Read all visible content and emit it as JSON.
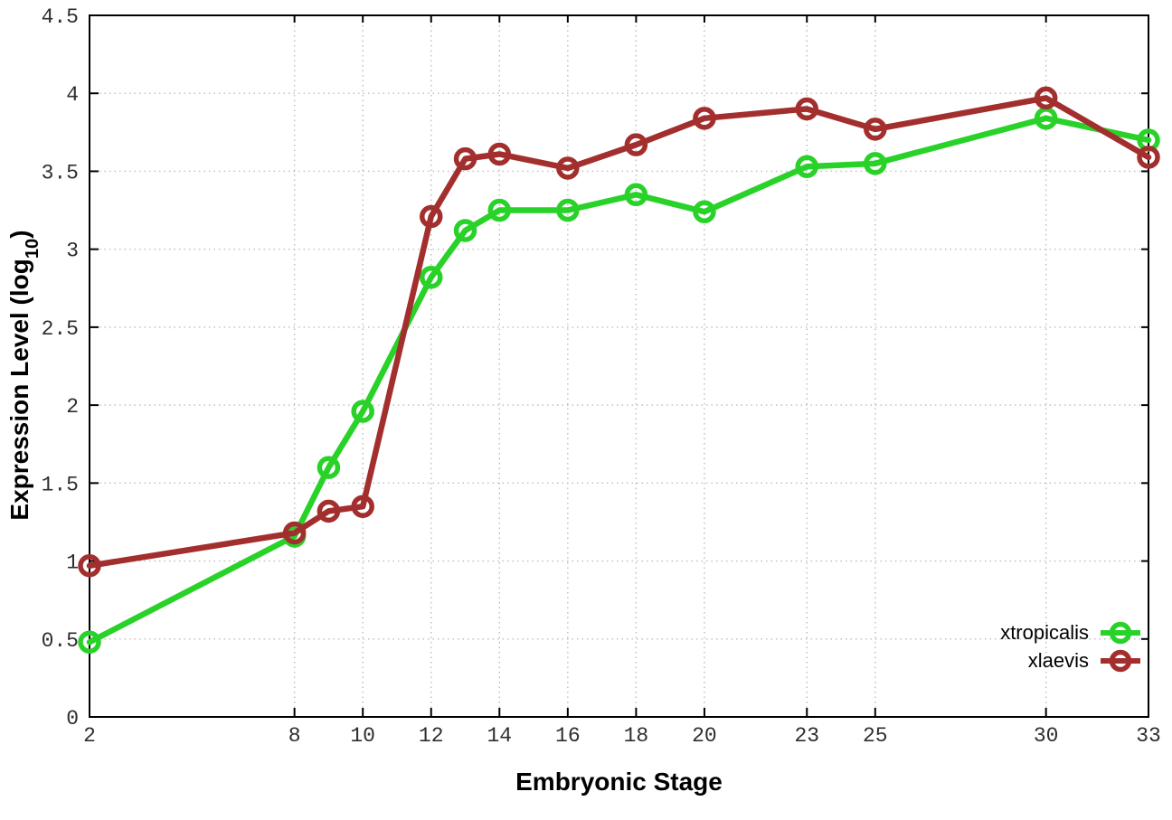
{
  "chart_data": {
    "type": "line",
    "title": "",
    "xlabel": "Embryonic Stage",
    "ylabel": "Expression Level (log10)",
    "ylabel_parts": {
      "main": "Expression Level (log",
      "sub": "10",
      "close": ")"
    },
    "xlim": [
      2,
      33
    ],
    "ylim": [
      0,
      4.5
    ],
    "x_ticks": [
      2,
      8,
      10,
      12,
      14,
      16,
      18,
      20,
      23,
      25,
      30,
      33
    ],
    "y_ticks": [
      0,
      0.5,
      1,
      1.5,
      2,
      2.5,
      3,
      3.5,
      4,
      4.5
    ],
    "grid": "dotted",
    "legend_position": "bottom-right-inside",
    "colors": {
      "grid": "#bcbcbc",
      "axis": "#000000",
      "tick_label": "#2e2e2e"
    },
    "series": [
      {
        "name": "xtropicalis",
        "color": "#28d228",
        "x": [
          2,
          8,
          9,
          10,
          12,
          13,
          14,
          16,
          18,
          20,
          23,
          25,
          30,
          33
        ],
        "y": [
          0.48,
          1.16,
          1.6,
          1.96,
          2.82,
          3.12,
          3.25,
          3.25,
          3.35,
          3.24,
          3.53,
          3.55,
          3.84,
          3.7
        ]
      },
      {
        "name": "xlaevis",
        "color": "#a32e2e",
        "x": [
          2,
          8,
          9,
          10,
          12,
          13,
          14,
          16,
          18,
          20,
          23,
          25,
          30,
          33
        ],
        "y": [
          0.97,
          1.18,
          1.32,
          1.35,
          3.21,
          3.58,
          3.61,
          3.52,
          3.67,
          3.84,
          3.9,
          3.77,
          3.97,
          3.59
        ]
      }
    ]
  }
}
